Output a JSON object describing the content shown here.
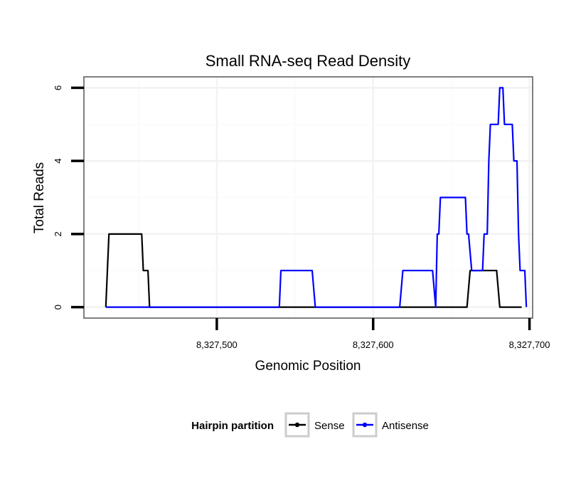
{
  "chart_data": {
    "type": "line",
    "title": "Small RNA-seq Read Density",
    "xlabel": "Genomic Position",
    "ylabel": "Total Reads",
    "xlim": [
      8327415,
      8327702
    ],
    "ylim": [
      -0.3,
      6.3
    ],
    "x_ticks": [
      {
        "value": 8327500,
        "label": "8,327,500"
      },
      {
        "value": 8327600,
        "label": "8,327,600"
      },
      {
        "value": 8327700,
        "label": "8,327,700"
      }
    ],
    "y_ticks": [
      {
        "value": 0,
        "label": "0"
      },
      {
        "value": 2,
        "label": "2"
      },
      {
        "value": 4,
        "label": "4"
      },
      {
        "value": 6,
        "label": "6"
      }
    ],
    "grid": true,
    "legend": {
      "title": "Hairpin partition",
      "position": "bottom",
      "entries": [
        {
          "label": "Sense",
          "color": "#000000"
        },
        {
          "label": "Antisense",
          "color": "#0000ff"
        }
      ]
    },
    "series": [
      {
        "name": "Sense",
        "color": "#000000",
        "points": [
          [
            8327429,
            0
          ],
          [
            8327431,
            2
          ],
          [
            8327452,
            2
          ],
          [
            8327453,
            1
          ],
          [
            8327456,
            1
          ],
          [
            8327457,
            0
          ],
          [
            8327474,
            0
          ],
          [
            8327526,
            0
          ],
          [
            8327606,
            0
          ],
          [
            8327627,
            0
          ],
          [
            8327628,
            0
          ],
          [
            8327660,
            0
          ],
          [
            8327662,
            1
          ],
          [
            8327679,
            1
          ],
          [
            8327681,
            0
          ],
          [
            8327695,
            0
          ]
        ]
      },
      {
        "name": "Antisense",
        "color": "#0000ff",
        "points": [
          [
            8327429,
            0
          ],
          [
            8327457,
            0
          ],
          [
            8327540,
            0
          ],
          [
            8327541,
            1
          ],
          [
            8327561,
            1
          ],
          [
            8327563,
            0
          ],
          [
            8327617,
            0
          ],
          [
            8327619,
            1
          ],
          [
            8327638,
            1
          ],
          [
            8327640,
            0
          ],
          [
            8327641,
            2
          ],
          [
            8327642,
            2
          ],
          [
            8327643,
            3
          ],
          [
            8327659,
            3
          ],
          [
            8327660,
            2
          ],
          [
            8327661,
            2
          ],
          [
            8327663,
            1
          ],
          [
            8327670,
            1
          ],
          [
            8327671,
            2
          ],
          [
            8327673,
            2
          ],
          [
            8327674,
            4
          ],
          [
            8327675,
            5
          ],
          [
            8327680,
            5
          ],
          [
            8327681,
            6
          ],
          [
            8327683,
            6
          ],
          [
            8327684,
            5
          ],
          [
            8327689,
            5
          ],
          [
            8327690,
            4
          ],
          [
            8327692,
            4
          ],
          [
            8327693,
            2
          ],
          [
            8327694,
            1
          ],
          [
            8327697,
            1
          ],
          [
            8327698,
            0
          ]
        ]
      }
    ]
  }
}
